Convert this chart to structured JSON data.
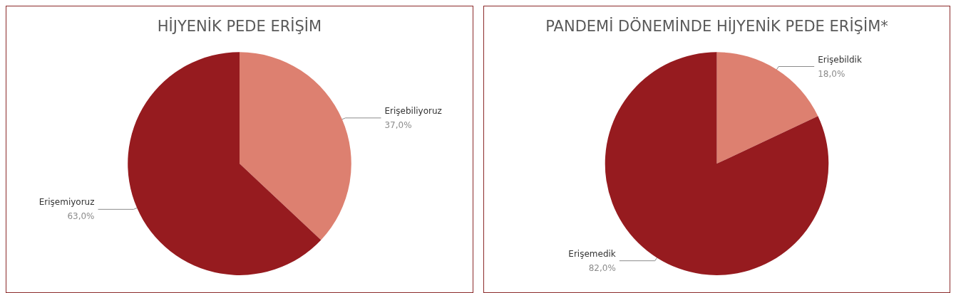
{
  "chart_data": [
    {
      "type": "pie",
      "title": "HİJYENİK PEDE ERİŞİM",
      "categories": [
        "Erişebiliyoruz",
        "Erişemiyoruz"
      ],
      "values": [
        37,
        63
      ],
      "colors": [
        "#dd8070",
        "#961b1f"
      ],
      "value_labels": [
        "37,0%",
        "63,0%"
      ],
      "legend": false
    },
    {
      "type": "pie",
      "title": "PANDEMİ DÖNEMİNDE HİJYENİK PEDE ERİŞİM*",
      "categories": [
        "Erişebildik",
        "Erişemedik"
      ],
      "values": [
        18,
        82
      ],
      "colors": [
        "#dd8070",
        "#961b1f"
      ],
      "value_labels": [
        "18,0%",
        "82,0%"
      ],
      "legend": false
    }
  ]
}
